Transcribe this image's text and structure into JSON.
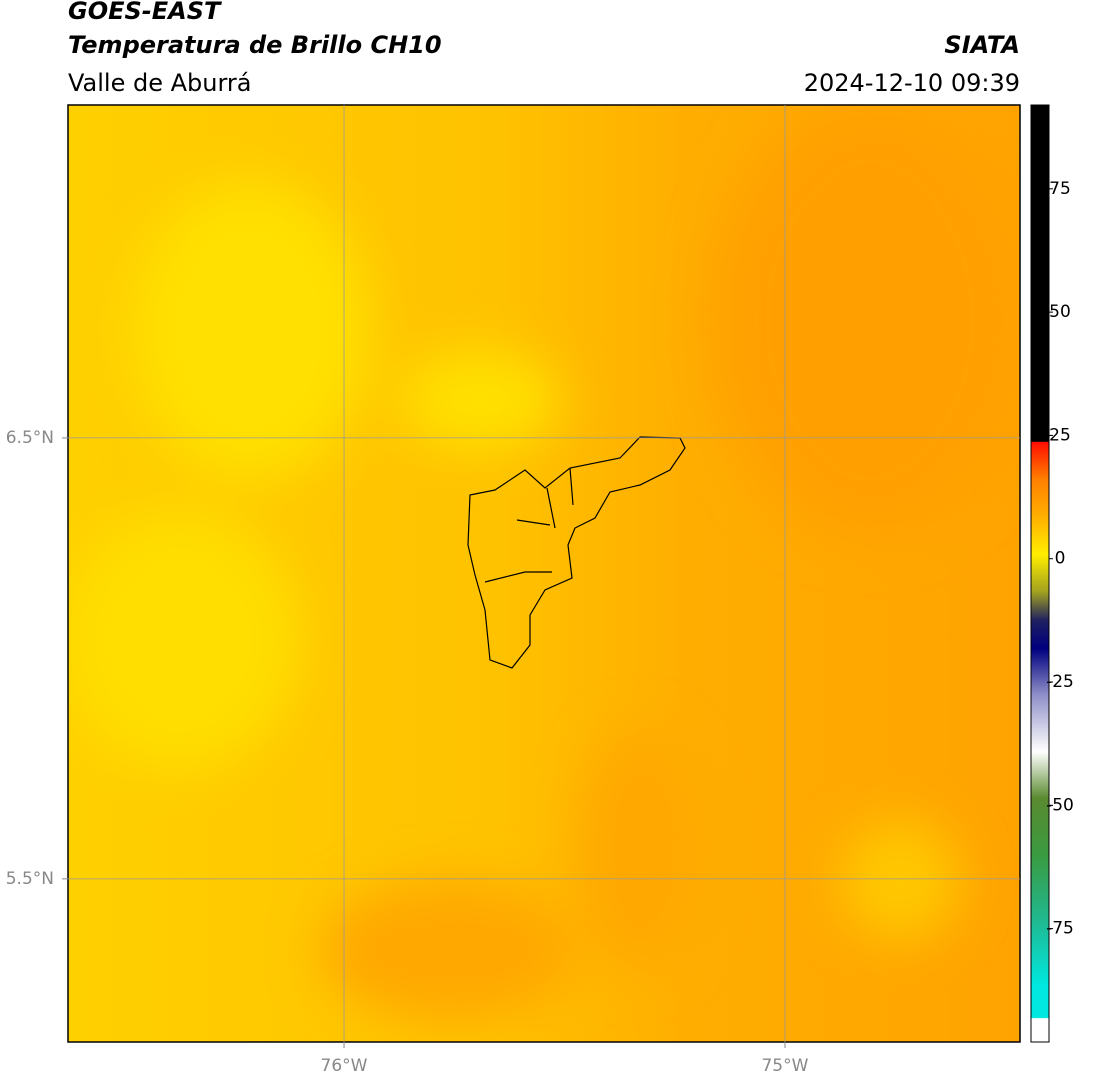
{
  "header": {
    "satellite": "GOES-EAST",
    "product": "Temperatura de Brillo CH10",
    "region": "Valle de Aburrá",
    "agency": "SIATA",
    "datetime": "2024-12-10 09:39"
  },
  "map": {
    "xlim": [
      -76.626,
      -74.467
    ],
    "ylim": [
      5.13,
      7.255
    ],
    "xticks": [
      {
        "value": -76,
        "label": "76°W"
      },
      {
        "value": -75,
        "label": "75°W"
      }
    ],
    "yticks": [
      {
        "value": 5.5,
        "label": "5.5°N"
      },
      {
        "value": 6.5,
        "label": "6.5°N"
      }
    ],
    "grid": true
  },
  "colorbar": {
    "lim": [
      -98,
      92
    ],
    "ticks": [
      -75,
      -50,
      -25,
      0,
      25,
      50,
      75
    ]
  }
}
